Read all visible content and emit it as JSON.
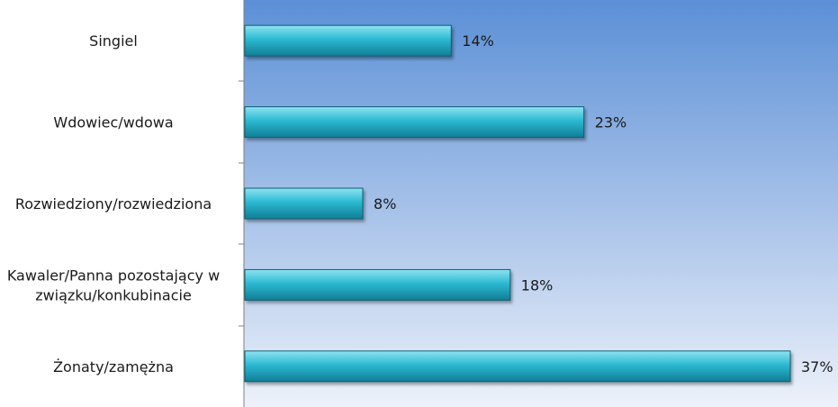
{
  "chart_data": {
    "type": "bar",
    "orientation": "horizontal",
    "categories": [
      [
        "Singiel"
      ],
      [
        "Wdowiec/wdowa"
      ],
      [
        "Rozwiedziony/rozwiedziona"
      ],
      [
        "Kawaler/Panna pozostający w",
        "związku/konkubinacie"
      ],
      [
        "Żonaty/zamężna"
      ]
    ],
    "values": [
      14,
      23,
      8,
      18,
      37
    ],
    "data_labels": [
      "14%",
      "23%",
      "8%",
      "18%",
      "37%"
    ],
    "xlim": [
      0,
      40
    ],
    "title": "",
    "xlabel": "",
    "ylabel": "",
    "grid": false,
    "legend": "none",
    "colors": {
      "bar_top": "#8fe3f1",
      "bar_mid": "#2bbad2",
      "bar_bottom": "#127d96",
      "bar_stroke": "#0b5f73",
      "plot_bg_top": "#5b8fd6",
      "plot_bg_bottom": "#edf1fa",
      "axis": "#7f7f7f"
    }
  }
}
